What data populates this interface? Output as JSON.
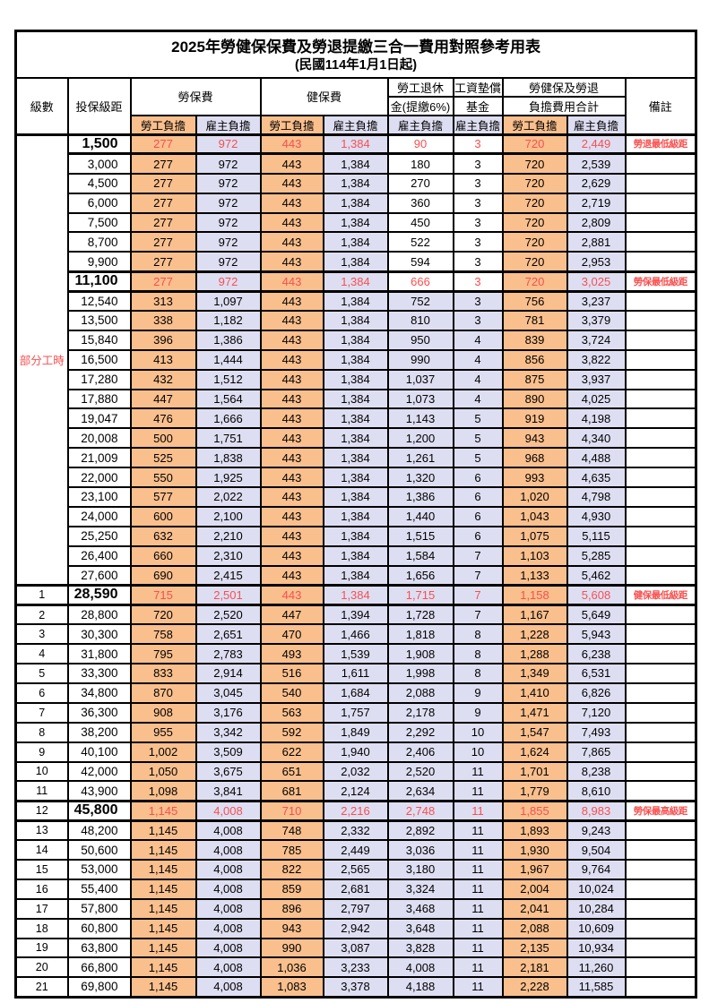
{
  "title": "2025年勞健保保費及勞退提繳三合一費用對照參考用表",
  "subtitle": "(民國114年1月1日起)",
  "header": {
    "level": "級數",
    "bracket": "投保級距",
    "labor_fee": "勞保費",
    "health_fee": "健保費",
    "pension_line1": "勞工退休",
    "pension_line2": "金(提繳6%)",
    "fund_line1": "工資墊償",
    "fund_line2": "基金",
    "total_line1": "勞健保及勞退",
    "total_line2": "負擔費用合計",
    "note": "備註",
    "employee_share": "勞工負擔",
    "employer_share": "雇主負擔"
  },
  "part_time_label": "部分工時",
  "colors": {
    "employee_bg": "#F9BF8D",
    "employer_bg": "#DEDEF2",
    "highlight_text": "#F84F4F",
    "note_text": "#FB3F3F"
  },
  "rows": [
    {
      "level": "",
      "bracket": "1,500",
      "values": [
        "277",
        "972",
        "443",
        "1,384",
        "90",
        "3",
        "720",
        "2,449"
      ],
      "note": "勞退最低級距",
      "highlight": true,
      "pension_plain": true
    },
    {
      "level": "",
      "bracket": "3,000",
      "values": [
        "277",
        "972",
        "443",
        "1,384",
        "180",
        "3",
        "720",
        "2,539"
      ],
      "note": "",
      "highlight": false,
      "pension_plain": true
    },
    {
      "level": "",
      "bracket": "4,500",
      "values": [
        "277",
        "972",
        "443",
        "1,384",
        "270",
        "3",
        "720",
        "2,629"
      ],
      "note": "",
      "highlight": false,
      "pension_plain": true
    },
    {
      "level": "",
      "bracket": "6,000",
      "values": [
        "277",
        "972",
        "443",
        "1,384",
        "360",
        "3",
        "720",
        "2,719"
      ],
      "note": "",
      "highlight": false,
      "pension_plain": true
    },
    {
      "level": "",
      "bracket": "7,500",
      "values": [
        "277",
        "972",
        "443",
        "1,384",
        "450",
        "3",
        "720",
        "2,809"
      ],
      "note": "",
      "highlight": false,
      "pension_plain": true
    },
    {
      "level": "",
      "bracket": "8,700",
      "values": [
        "277",
        "972",
        "443",
        "1,384",
        "522",
        "3",
        "720",
        "2,881"
      ],
      "note": "",
      "highlight": false,
      "pension_plain": true
    },
    {
      "level": "",
      "bracket": "9,900",
      "values": [
        "277",
        "972",
        "443",
        "1,384",
        "594",
        "3",
        "720",
        "2,953"
      ],
      "note": "",
      "highlight": false,
      "pension_plain": true
    },
    {
      "level": "",
      "bracket": "11,100",
      "values": [
        "277",
        "972",
        "443",
        "1,384",
        "666",
        "3",
        "720",
        "3,025"
      ],
      "note": "勞保最低級距",
      "highlight": true,
      "pension_plain": true
    },
    {
      "level": "",
      "bracket": "12,540",
      "values": [
        "313",
        "1,097",
        "443",
        "1,384",
        "752",
        "3",
        "756",
        "3,237"
      ],
      "note": "",
      "highlight": false,
      "pension_plain": false
    },
    {
      "level": "",
      "bracket": "13,500",
      "values": [
        "338",
        "1,182",
        "443",
        "1,384",
        "810",
        "3",
        "781",
        "3,379"
      ],
      "note": "",
      "highlight": false,
      "pension_plain": false
    },
    {
      "level": "",
      "bracket": "15,840",
      "values": [
        "396",
        "1,386",
        "443",
        "1,384",
        "950",
        "4",
        "839",
        "3,724"
      ],
      "note": "",
      "highlight": false,
      "pension_plain": false
    },
    {
      "level": "",
      "bracket": "16,500",
      "values": [
        "413",
        "1,444",
        "443",
        "1,384",
        "990",
        "4",
        "856",
        "3,822"
      ],
      "note": "",
      "highlight": false,
      "pension_plain": false
    },
    {
      "level": "",
      "bracket": "17,280",
      "values": [
        "432",
        "1,512",
        "443",
        "1,384",
        "1,037",
        "4",
        "875",
        "3,937"
      ],
      "note": "",
      "highlight": false,
      "pension_plain": false
    },
    {
      "level": "",
      "bracket": "17,880",
      "values": [
        "447",
        "1,564",
        "443",
        "1,384",
        "1,073",
        "4",
        "890",
        "4,025"
      ],
      "note": "",
      "highlight": false,
      "pension_plain": false
    },
    {
      "level": "",
      "bracket": "19,047",
      "values": [
        "476",
        "1,666",
        "443",
        "1,384",
        "1,143",
        "5",
        "919",
        "4,198"
      ],
      "note": "",
      "highlight": false,
      "pension_plain": false
    },
    {
      "level": "",
      "bracket": "20,008",
      "values": [
        "500",
        "1,751",
        "443",
        "1,384",
        "1,200",
        "5",
        "943",
        "4,340"
      ],
      "note": "",
      "highlight": false,
      "pension_plain": false
    },
    {
      "level": "",
      "bracket": "21,009",
      "values": [
        "525",
        "1,838",
        "443",
        "1,384",
        "1,261",
        "5",
        "968",
        "4,488"
      ],
      "note": "",
      "highlight": false,
      "pension_plain": false
    },
    {
      "level": "",
      "bracket": "22,000",
      "values": [
        "550",
        "1,925",
        "443",
        "1,384",
        "1,320",
        "6",
        "993",
        "4,635"
      ],
      "note": "",
      "highlight": false,
      "pension_plain": false
    },
    {
      "level": "",
      "bracket": "23,100",
      "values": [
        "577",
        "2,022",
        "443",
        "1,384",
        "1,386",
        "6",
        "1,020",
        "4,798"
      ],
      "note": "",
      "highlight": false,
      "pension_plain": false
    },
    {
      "level": "",
      "bracket": "24,000",
      "values": [
        "600",
        "2,100",
        "443",
        "1,384",
        "1,440",
        "6",
        "1,043",
        "4,930"
      ],
      "note": "",
      "highlight": false,
      "pension_plain": false
    },
    {
      "level": "",
      "bracket": "25,250",
      "values": [
        "632",
        "2,210",
        "443",
        "1,384",
        "1,515",
        "6",
        "1,075",
        "5,115"
      ],
      "note": "",
      "highlight": false,
      "pension_plain": false
    },
    {
      "level": "",
      "bracket": "26,400",
      "values": [
        "660",
        "2,310",
        "443",
        "1,384",
        "1,584",
        "7",
        "1,103",
        "5,285"
      ],
      "note": "",
      "highlight": false,
      "pension_plain": false
    },
    {
      "level": "",
      "bracket": "27,600",
      "values": [
        "690",
        "2,415",
        "443",
        "1,384",
        "1,656",
        "7",
        "1,133",
        "5,462"
      ],
      "note": "",
      "highlight": false,
      "pension_plain": false
    },
    {
      "level": "1",
      "bracket": "28,590",
      "values": [
        "715",
        "2,501",
        "443",
        "1,384",
        "1,715",
        "7",
        "1,158",
        "5,608"
      ],
      "note": "健保最低級距",
      "highlight": true,
      "pension_plain": false
    },
    {
      "level": "2",
      "bracket": "28,800",
      "values": [
        "720",
        "2,520",
        "447",
        "1,394",
        "1,728",
        "7",
        "1,167",
        "5,649"
      ],
      "note": "",
      "highlight": false,
      "pension_plain": false
    },
    {
      "level": "3",
      "bracket": "30,300",
      "values": [
        "758",
        "2,651",
        "470",
        "1,466",
        "1,818",
        "8",
        "1,228",
        "5,943"
      ],
      "note": "",
      "highlight": false,
      "pension_plain": false
    },
    {
      "level": "4",
      "bracket": "31,800",
      "values": [
        "795",
        "2,783",
        "493",
        "1,539",
        "1,908",
        "8",
        "1,288",
        "6,238"
      ],
      "note": "",
      "highlight": false,
      "pension_plain": false
    },
    {
      "level": "5",
      "bracket": "33,300",
      "values": [
        "833",
        "2,914",
        "516",
        "1,611",
        "1,998",
        "8",
        "1,349",
        "6,531"
      ],
      "note": "",
      "highlight": false,
      "pension_plain": false
    },
    {
      "level": "6",
      "bracket": "34,800",
      "values": [
        "870",
        "3,045",
        "540",
        "1,684",
        "2,088",
        "9",
        "1,410",
        "6,826"
      ],
      "note": "",
      "highlight": false,
      "pension_plain": false
    },
    {
      "level": "7",
      "bracket": "36,300",
      "values": [
        "908",
        "3,176",
        "563",
        "1,757",
        "2,178",
        "9",
        "1,471",
        "7,120"
      ],
      "note": "",
      "highlight": false,
      "pension_plain": false
    },
    {
      "level": "8",
      "bracket": "38,200",
      "values": [
        "955",
        "3,342",
        "592",
        "1,849",
        "2,292",
        "10",
        "1,547",
        "7,493"
      ],
      "note": "",
      "highlight": false,
      "pension_plain": false
    },
    {
      "level": "9",
      "bracket": "40,100",
      "values": [
        "1,002",
        "3,509",
        "622",
        "1,940",
        "2,406",
        "10",
        "1,624",
        "7,865"
      ],
      "note": "",
      "highlight": false,
      "pension_plain": false
    },
    {
      "level": "10",
      "bracket": "42,000",
      "values": [
        "1,050",
        "3,675",
        "651",
        "2,032",
        "2,520",
        "11",
        "1,701",
        "8,238"
      ],
      "note": "",
      "highlight": false,
      "pension_plain": false
    },
    {
      "level": "11",
      "bracket": "43,900",
      "values": [
        "1,098",
        "3,841",
        "681",
        "2,124",
        "2,634",
        "11",
        "1,779",
        "8,610"
      ],
      "note": "",
      "highlight": false,
      "pension_plain": false
    },
    {
      "level": "12",
      "bracket": "45,800",
      "values": [
        "1,145",
        "4,008",
        "710",
        "2,216",
        "2,748",
        "11",
        "1,855",
        "8,983"
      ],
      "note": "勞保最高級距",
      "highlight": true,
      "pension_plain": false
    },
    {
      "level": "13",
      "bracket": "48,200",
      "values": [
        "1,145",
        "4,008",
        "748",
        "2,332",
        "2,892",
        "11",
        "1,893",
        "9,243"
      ],
      "note": "",
      "highlight": false,
      "pension_plain": false
    },
    {
      "level": "14",
      "bracket": "50,600",
      "values": [
        "1,145",
        "4,008",
        "785",
        "2,449",
        "3,036",
        "11",
        "1,930",
        "9,504"
      ],
      "note": "",
      "highlight": false,
      "pension_plain": false
    },
    {
      "level": "15",
      "bracket": "53,000",
      "values": [
        "1,145",
        "4,008",
        "822",
        "2,565",
        "3,180",
        "11",
        "1,967",
        "9,764"
      ],
      "note": "",
      "highlight": false,
      "pension_plain": false
    },
    {
      "level": "16",
      "bracket": "55,400",
      "values": [
        "1,145",
        "4,008",
        "859",
        "2,681",
        "3,324",
        "11",
        "2,004",
        "10,024"
      ],
      "note": "",
      "highlight": false,
      "pension_plain": false
    },
    {
      "level": "17",
      "bracket": "57,800",
      "values": [
        "1,145",
        "4,008",
        "896",
        "2,797",
        "3,468",
        "11",
        "2,041",
        "10,284"
      ],
      "note": "",
      "highlight": false,
      "pension_plain": false
    },
    {
      "level": "18",
      "bracket": "60,800",
      "values": [
        "1,145",
        "4,008",
        "943",
        "2,942",
        "3,648",
        "11",
        "2,088",
        "10,609"
      ],
      "note": "",
      "highlight": false,
      "pension_plain": false
    },
    {
      "level": "19",
      "bracket": "63,800",
      "values": [
        "1,145",
        "4,008",
        "990",
        "3,087",
        "3,828",
        "11",
        "2,135",
        "10,934"
      ],
      "note": "",
      "highlight": false,
      "pension_plain": false
    },
    {
      "level": "20",
      "bracket": "66,800",
      "values": [
        "1,145",
        "4,008",
        "1,036",
        "3,233",
        "4,008",
        "11",
        "2,181",
        "11,260"
      ],
      "note": "",
      "highlight": false,
      "pension_plain": false
    },
    {
      "level": "21",
      "bracket": "69,800",
      "values": [
        "1,145",
        "4,008",
        "1,083",
        "3,378",
        "4,188",
        "11",
        "2,228",
        "11,585"
      ],
      "note": "",
      "highlight": false,
      "pension_plain": false
    }
  ]
}
